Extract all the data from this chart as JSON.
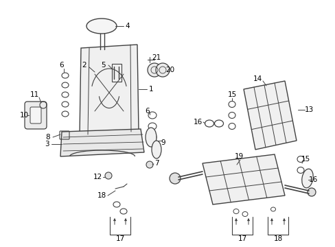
{
  "bg_color": "#ffffff",
  "lc": "#404040",
  "fig_w": 4.89,
  "fig_h": 3.6,
  "dpi": 100
}
